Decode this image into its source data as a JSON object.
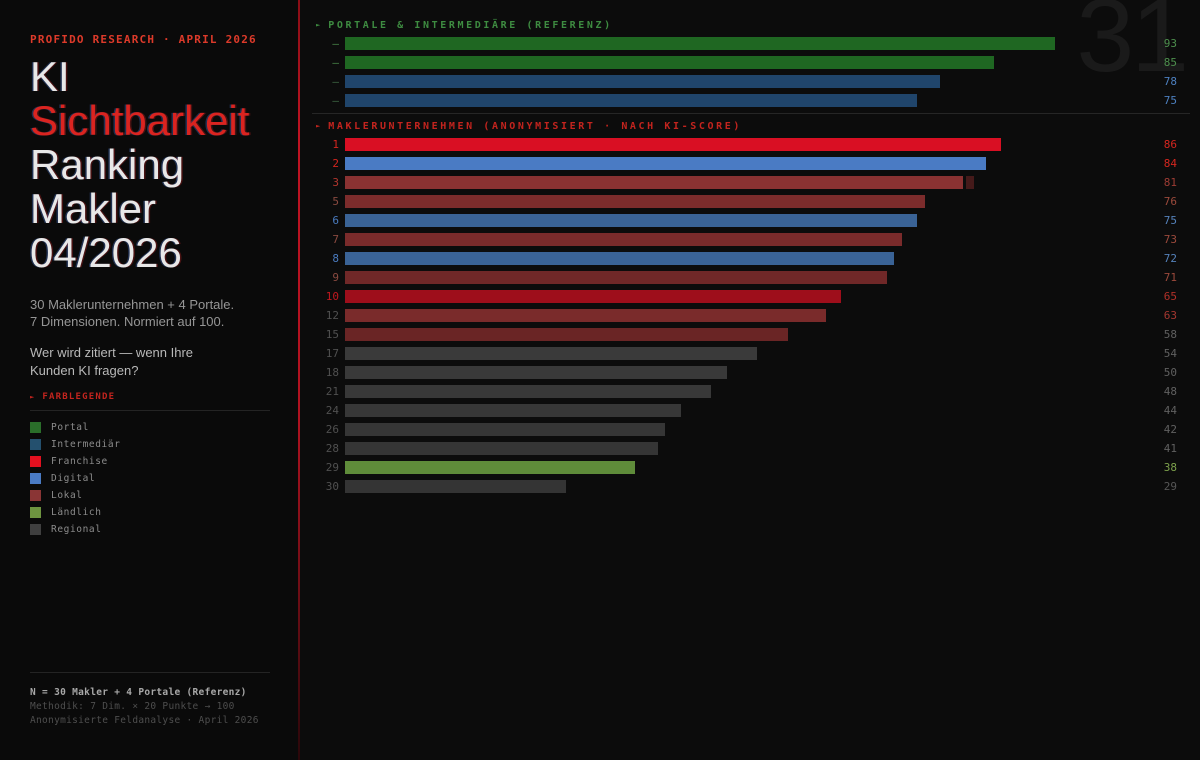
{
  "colors": {
    "background": "#0c0c0c",
    "sidebar_background": "#0a0a0a",
    "accent_red": "#d5261f",
    "divider": "#262626",
    "separator_line_red": "#b01220",
    "watermark_color": "#1a1a1a"
  },
  "sidebar": {
    "kicker": "PROFIDO RESEARCH · APRIL 2026",
    "title_lines": [
      {
        "text": "KI",
        "accent": false
      },
      {
        "text": "Sichtbarkeit",
        "accent": true
      },
      {
        "text": "Ranking",
        "accent": false
      },
      {
        "text": "Makler",
        "accent": false
      },
      {
        "text": "04/2026",
        "accent": false
      }
    ],
    "subtitle_lines": [
      "30 Maklerunternehmen + 4 Portale.",
      "7 Dimensionen. Normiert auf 100."
    ],
    "question_lines": [
      "Wer wird zitiert — wenn Ihre",
      "Kunden KI fragen?"
    ],
    "legend": {
      "title": "FARBLEGENDE",
      "items": [
        {
          "label": "Portal",
          "color": "#2a6e2a"
        },
        {
          "label": "Intermediär",
          "color": "#24506e"
        },
        {
          "label": "Franchise",
          "color": "#e3101f"
        },
        {
          "label": "Digital",
          "color": "#4a7bc4"
        },
        {
          "label": "Lokal",
          "color": "#8a3535"
        },
        {
          "label": "Ländlich",
          "color": "#6e9440"
        },
        {
          "label": "Regional",
          "color": "#3f3f3f"
        }
      ]
    },
    "footer_lines": [
      {
        "text": "N = 30 Makler + 4 Portale (Referenz)",
        "emphasis": true
      },
      {
        "text": "Methodik: 7 Dim. × 20 Punkte → 100",
        "emphasis": false
      },
      {
        "text": "Anonymisierte Feldanalyse · April 2026",
        "emphasis": false
      }
    ]
  },
  "main": {
    "watermark": "31"
  },
  "chart_data": {
    "type": "bar",
    "orientation": "horizontal",
    "xlim": [
      0,
      100
    ],
    "grid": false,
    "legend_position": "sidebar-left",
    "sections": [
      {
        "id": "portale",
        "title": "PORTALE & INTERMEDIÄRE (REFERENZ)",
        "title_color": "#3e8c41",
        "rows": [
          {
            "label": "—",
            "value": 93,
            "category": "Portal",
            "bar_color": "#1f6722",
            "label_color": "#4a8a4a",
            "value_color": "#4d8f4d",
            "glitch": false
          },
          {
            "label": "—",
            "value": 85,
            "category": "Portal",
            "bar_color": "#1f6722",
            "label_color": "#4a8a4a",
            "value_color": "#4d8f4d",
            "glitch": false
          },
          {
            "label": "—",
            "value": 78,
            "category": "Intermediär",
            "bar_color": "#20456b",
            "label_color": "#3f6a46",
            "value_color": "#4d80c0",
            "glitch": false
          },
          {
            "label": "—",
            "value": 75,
            "category": "Intermediär",
            "bar_color": "#20456b",
            "label_color": "#3f6a46",
            "value_color": "#4d80c0",
            "glitch": false
          }
        ]
      },
      {
        "id": "makler",
        "title": "MAKLERUNTERNEHMEN (ANONYMISIERT · NACH KI-SCORE)",
        "title_color": "#c3241e",
        "rows": [
          {
            "label": "1",
            "value": 86,
            "category": "Franchise",
            "bar_color": "#d90f23",
            "label_color": "#d5261f",
            "value_color": "#d5261f",
            "glitch": false
          },
          {
            "label": "2",
            "value": 84,
            "category": "Digital",
            "bar_color": "#4a7bc4",
            "label_color": "#d5261f",
            "value_color": "#d5261f",
            "glitch": false
          },
          {
            "label": "3",
            "value": 81,
            "category": "Lokal",
            "bar_color": "#8a3232",
            "label_color": "#b3362e",
            "value_color": "#9e3c34",
            "glitch": true
          },
          {
            "label": "5",
            "value": 76,
            "category": "Lokal",
            "bar_color": "#7c2c2c",
            "label_color": "#8a4a40",
            "value_color": "#9c4a3c",
            "glitch": false
          },
          {
            "label": "6",
            "value": 75,
            "category": "Intermediär",
            "bar_color": "#3a6396",
            "label_color": "#4a7bbf",
            "value_color": "#5582bb",
            "glitch": false
          },
          {
            "label": "7",
            "value": 73,
            "category": "Lokal",
            "bar_color": "#7a2b2b",
            "label_color": "#8a4a40",
            "value_color": "#9c4a3c",
            "glitch": false
          },
          {
            "label": "8",
            "value": 72,
            "category": "Intermediär",
            "bar_color": "#3a6396",
            "label_color": "#4a7bbf",
            "value_color": "#5582bb",
            "glitch": false
          },
          {
            "label": "9",
            "value": 71,
            "category": "Lokal",
            "bar_color": "#702828",
            "label_color": "#8a4a40",
            "value_color": "#9c4a3c",
            "glitch": false
          },
          {
            "label": "10",
            "value": 65,
            "category": "Franchise",
            "bar_color": "#9e0e1b",
            "label_color": "#c0181f",
            "value_color": "#b03028",
            "glitch": false
          },
          {
            "label": "12",
            "value": 63,
            "category": "Lokal",
            "bar_color": "#7a2b2b",
            "label_color": "#505050",
            "value_color": "#a43730",
            "glitch": false
          },
          {
            "label": "15",
            "value": 58,
            "category": "Lokal",
            "bar_color": "#6a2525",
            "label_color": "#505050",
            "value_color": "#606060",
            "glitch": false
          },
          {
            "label": "17",
            "value": 54,
            "category": "Regional",
            "bar_color": "#3a3a3a",
            "label_color": "#505050",
            "value_color": "#606060",
            "glitch": false
          },
          {
            "label": "18",
            "value": 50,
            "category": "Regional",
            "bar_color": "#393939",
            "label_color": "#505050",
            "value_color": "#606060",
            "glitch": false
          },
          {
            "label": "21",
            "value": 48,
            "category": "Regional",
            "bar_color": "#383838",
            "label_color": "#505050",
            "value_color": "#606060",
            "glitch": false
          },
          {
            "label": "24",
            "value": 44,
            "category": "Regional",
            "bar_color": "#373737",
            "label_color": "#505050",
            "value_color": "#606060",
            "glitch": false
          },
          {
            "label": "26",
            "value": 42,
            "category": "Regional",
            "bar_color": "#363636",
            "label_color": "#505050",
            "value_color": "#606060",
            "glitch": false
          },
          {
            "label": "28",
            "value": 41,
            "category": "Regional",
            "bar_color": "#353535",
            "label_color": "#505050",
            "value_color": "#606060",
            "glitch": false
          },
          {
            "label": "29",
            "value": 38,
            "category": "Ländlich",
            "bar_color": "#5f8c3a",
            "label_color": "#505050",
            "value_color": "#7da14c",
            "glitch": false
          },
          {
            "label": "30",
            "value": 29,
            "category": "Regional",
            "bar_color": "#343434",
            "label_color": "#505050",
            "value_color": "#565656",
            "glitch": false
          }
        ]
      }
    ]
  }
}
